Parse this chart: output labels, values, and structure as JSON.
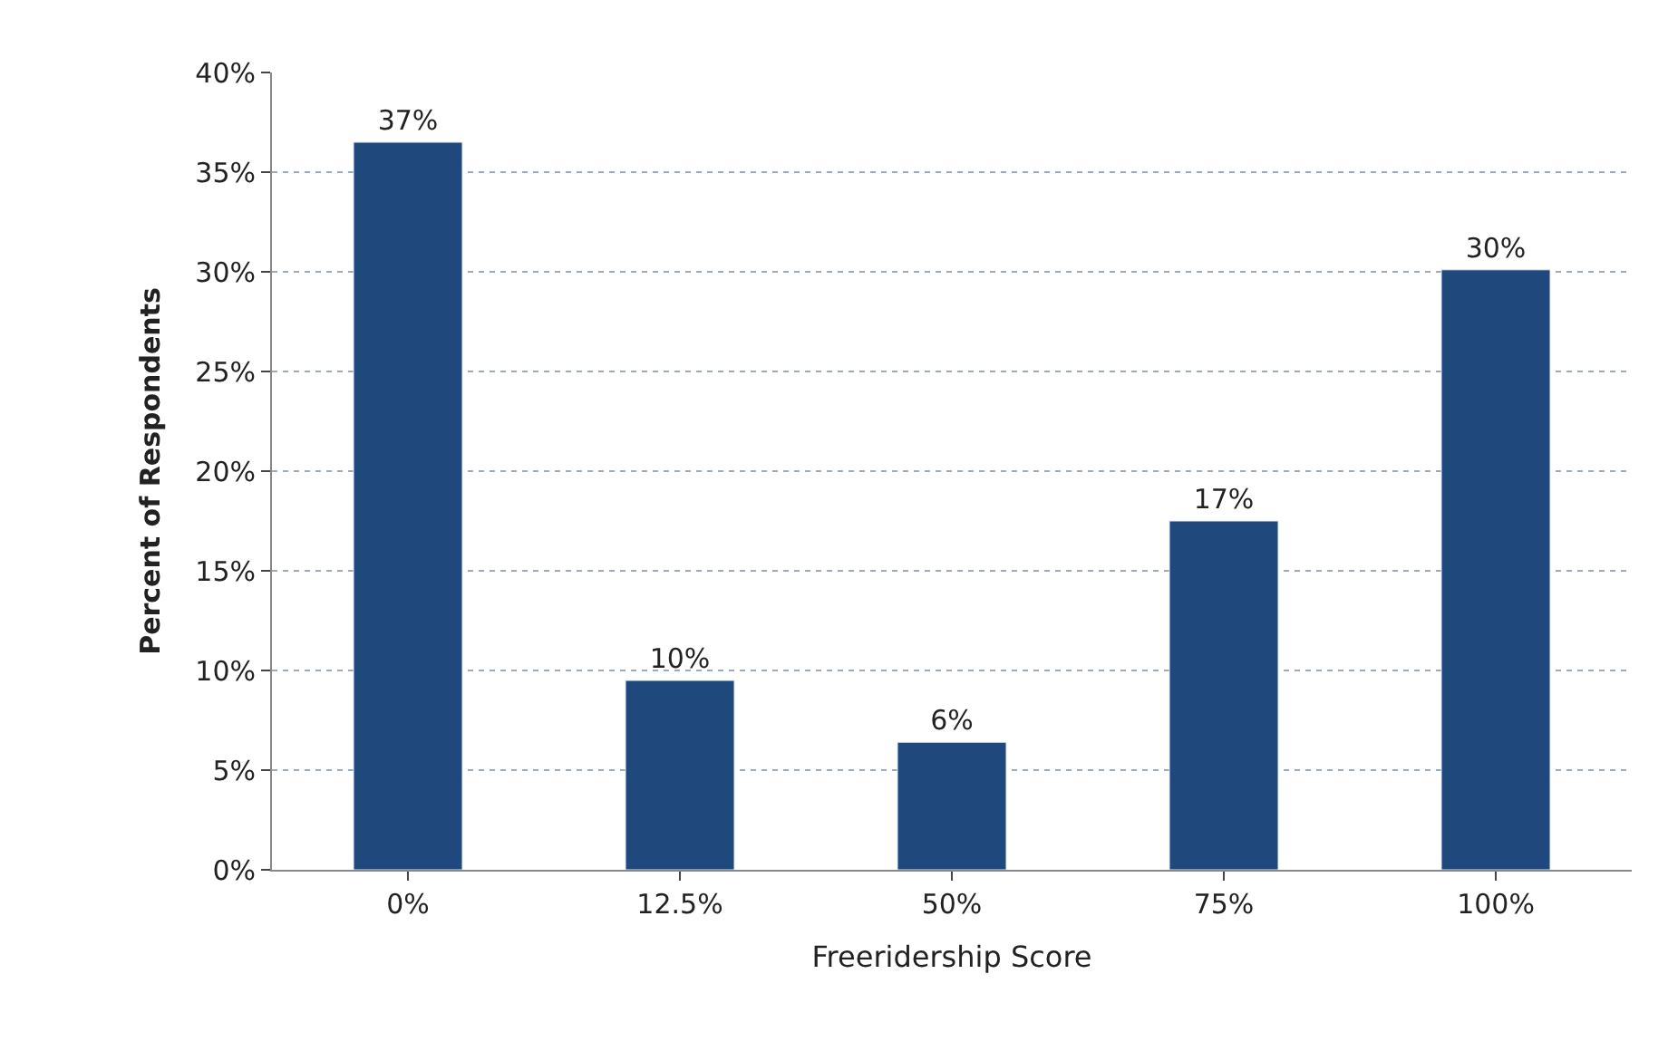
{
  "chart_data": {
    "type": "bar",
    "xlabel": "Freeridership Score",
    "ylabel": "Percent of Respondents",
    "categories": [
      "0%",
      "12.5%",
      "50%",
      "75%",
      "100%"
    ],
    "values": [
      36.5,
      9.5,
      6.4,
      17.5,
      30.1
    ],
    "value_labels": [
      "37%",
      "10%",
      "6%",
      "17%",
      "30%"
    ],
    "color": "#1f497d",
    "ylim": [
      0,
      40
    ],
    "yticks": [
      {
        "value": 0,
        "label": "0%"
      },
      {
        "value": 5,
        "label": "5%"
      },
      {
        "value": 10,
        "label": "10%"
      },
      {
        "value": 15,
        "label": "15%"
      },
      {
        "value": 20,
        "label": "20%"
      },
      {
        "value": 25,
        "label": "25%"
      },
      {
        "value": 30,
        "label": "30%"
      },
      {
        "value": 35,
        "label": "35%"
      },
      {
        "value": 40,
        "label": "40%"
      }
    ],
    "grid": "y"
  }
}
